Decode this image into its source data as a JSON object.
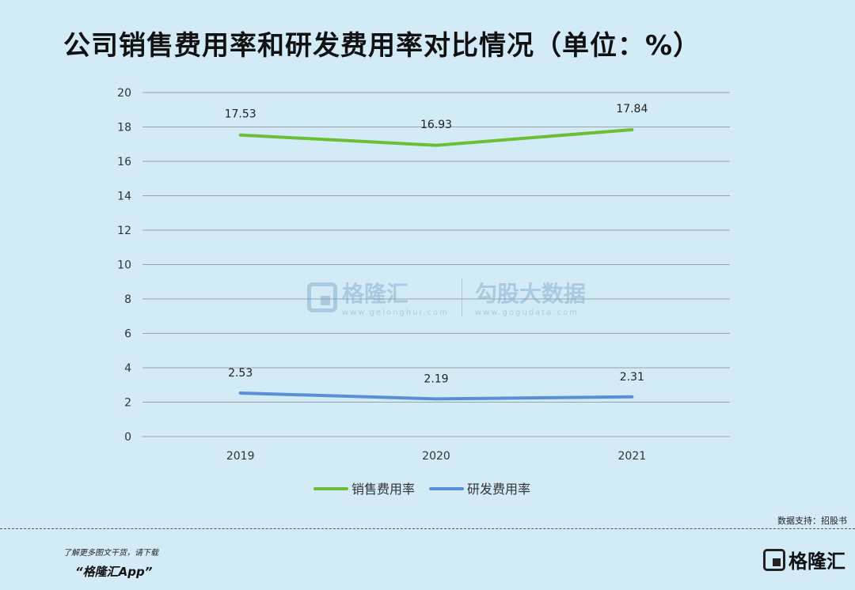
{
  "title": "公司销售费用率和研发费用率对比情况（单位：%）",
  "chart_data": {
    "type": "line",
    "title": "公司销售费用率和研发费用率对比情况（单位：%）",
    "x": [
      "2019",
      "2020",
      "2021"
    ],
    "ylim": [
      0,
      20
    ],
    "yticks": [
      0,
      2,
      4,
      6,
      8,
      10,
      12,
      14,
      16,
      18,
      20
    ],
    "grid": true,
    "legend": "bottom",
    "series": [
      {
        "name": "销售费用率",
        "values": [
          17.53,
          16.93,
          17.84
        ],
        "labels": [
          "17.53",
          "16.93",
          "17.84"
        ],
        "color": "#6cbe35"
      },
      {
        "name": "研发费用率",
        "values": [
          2.53,
          2.19,
          2.31
        ],
        "labels": [
          "2.53",
          "2.19",
          "2.31"
        ],
        "color": "#5b8ed6"
      }
    ]
  },
  "watermark": {
    "brand": "格隆汇",
    "brand_url": "www.gelonghui.com",
    "brand2": "勾股大数据",
    "brand2_url": "www.gogudata.com"
  },
  "footer": {
    "source": "数据支持：招股书",
    "promo_line1": "了解更多图文干货，请下载",
    "promo_line2": "“格隆汇App”",
    "logo_text": "格隆汇"
  }
}
